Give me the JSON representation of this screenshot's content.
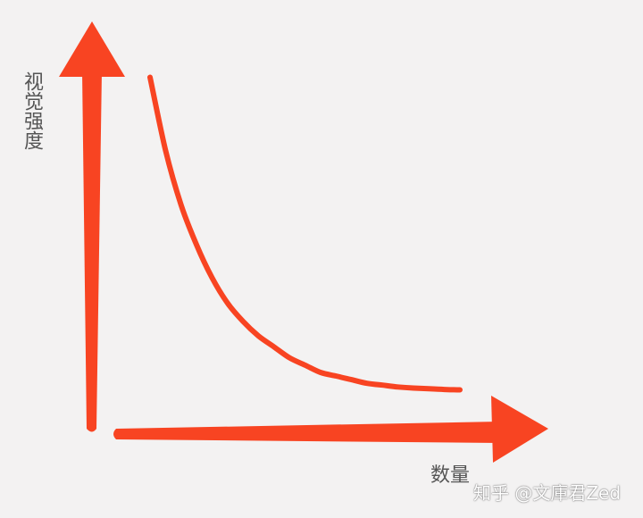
{
  "chart_data": {
    "type": "line",
    "title": "",
    "ylabel": "视觉强度",
    "xlabel": "数量",
    "grid": false,
    "legend": "none",
    "ylim": [
      0,
      1
    ],
    "xlim": [
      0,
      1
    ],
    "x": [
      0.0,
      0.05,
      0.1,
      0.15,
      0.2,
      0.25,
      0.3,
      0.35,
      0.4,
      0.45,
      0.5,
      0.55,
      0.6,
      0.65,
      0.7,
      0.75,
      0.8,
      0.85,
      0.9,
      0.95,
      1.0
    ],
    "series": [
      {
        "values": [
          0.94,
          0.74,
          0.59,
          0.48,
          0.39,
          0.32,
          0.27,
          0.23,
          0.2,
          0.17,
          0.15,
          0.13,
          0.12,
          0.11,
          0.1,
          0.095,
          0.09,
          0.087,
          0.085,
          0.083,
          0.082
        ]
      }
    ]
  },
  "colors": {
    "axis": "#f84422",
    "curve": "#f84422",
    "background": "#f3f2f2"
  },
  "watermark": "知乎 @文庫君Zed"
}
